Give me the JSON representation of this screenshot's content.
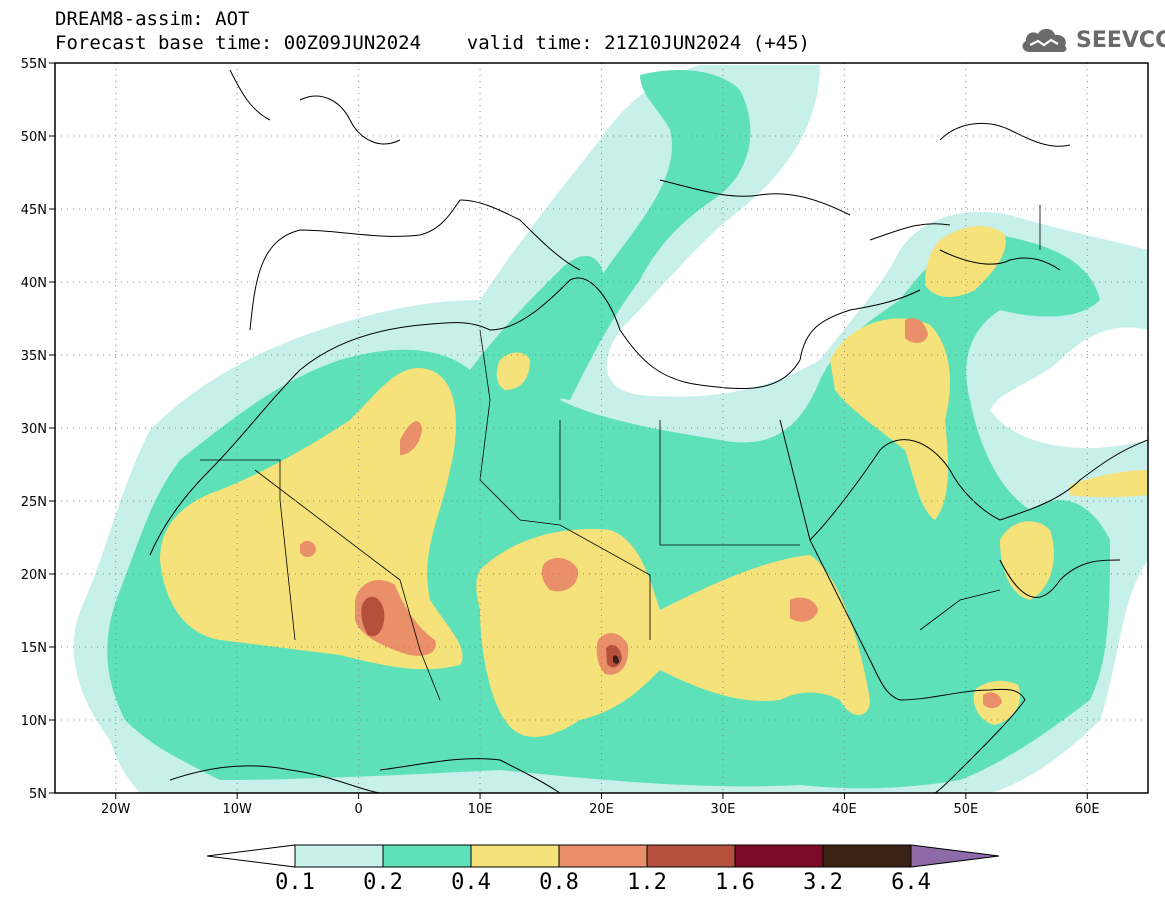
{
  "header": {
    "line1": "DREAM8-assim: AOT",
    "line2": "Forecast base time: 00Z09JUN2024    valid time: 21Z10JUN2024 (+45)",
    "logo_text": "SEEVCCC",
    "logo_icon": "cloud-icon"
  },
  "map": {
    "lon_range": [
      -25,
      65
    ],
    "lat_range": [
      5,
      55
    ],
    "x_ticks": [
      "20W",
      "10W",
      "0",
      "10E",
      "20E",
      "30E",
      "40E",
      "50E",
      "60E"
    ],
    "x_tick_values": [
      -20,
      -10,
      0,
      10,
      20,
      30,
      40,
      50,
      60
    ],
    "y_ticks": [
      "5N",
      "10N",
      "15N",
      "20N",
      "25N",
      "30N",
      "35N",
      "40N",
      "45N",
      "50N",
      "55N"
    ],
    "y_tick_values": [
      5,
      10,
      15,
      20,
      25,
      30,
      35,
      40,
      45,
      50,
      55
    ],
    "gridlines": true
  },
  "colorbar": {
    "labels": [
      "0.1",
      "0.2",
      "0.4",
      "0.8",
      "1.2",
      "1.6",
      "3.2",
      "6.4"
    ],
    "colors": [
      "#ffffff",
      "#c6f0e9",
      "#5ee0b8",
      "#f5e27a",
      "#e9906a",
      "#b5503c",
      "#7d0a26",
      "#3a2214",
      "#8e6aa8"
    ]
  },
  "fields": {
    "c1": "#c6f0e9",
    "c2": "#5ee0b8",
    "c3": "#f5e27a",
    "c4": "#e9906a",
    "c5": "#b5503c",
    "c6": "#7d0a26",
    "c7": "#3a2214"
  }
}
